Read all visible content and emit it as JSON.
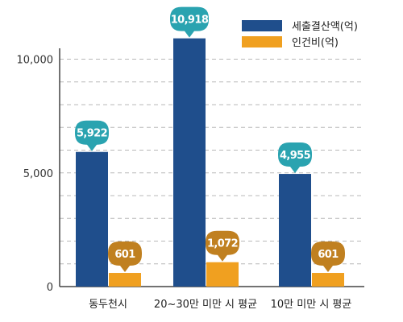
{
  "chart_data": {
    "type": "bar",
    "categories": [
      "동두천시",
      "20~30만 미만 시 평균",
      "10만 미만 시 평균"
    ],
    "series": [
      {
        "name": "세출결산액(억)",
        "values": [
          5922,
          10918,
          4955
        ],
        "color": "#1f4e8c",
        "bubble_color": "#2aa3b0"
      },
      {
        "name": "인건비(억)",
        "values": [
          601,
          1072,
          601
        ],
        "color": "#f0a020",
        "bubble_color": "#c08020"
      }
    ],
    "data_labels": [
      [
        "5,922",
        "10,918",
        "4,955"
      ],
      [
        "601",
        "1,072",
        "601"
      ]
    ],
    "y_ticks": [
      {
        "value": 0,
        "label": "0"
      },
      {
        "value": 5000,
        "label": "5,000"
      },
      {
        "value": 10000,
        "label": "10,000"
      }
    ],
    "ylim": [
      0,
      10000
    ],
    "grid": "dashed",
    "legend_position": "top-right",
    "title": "",
    "xlabel": "",
    "ylabel": ""
  }
}
